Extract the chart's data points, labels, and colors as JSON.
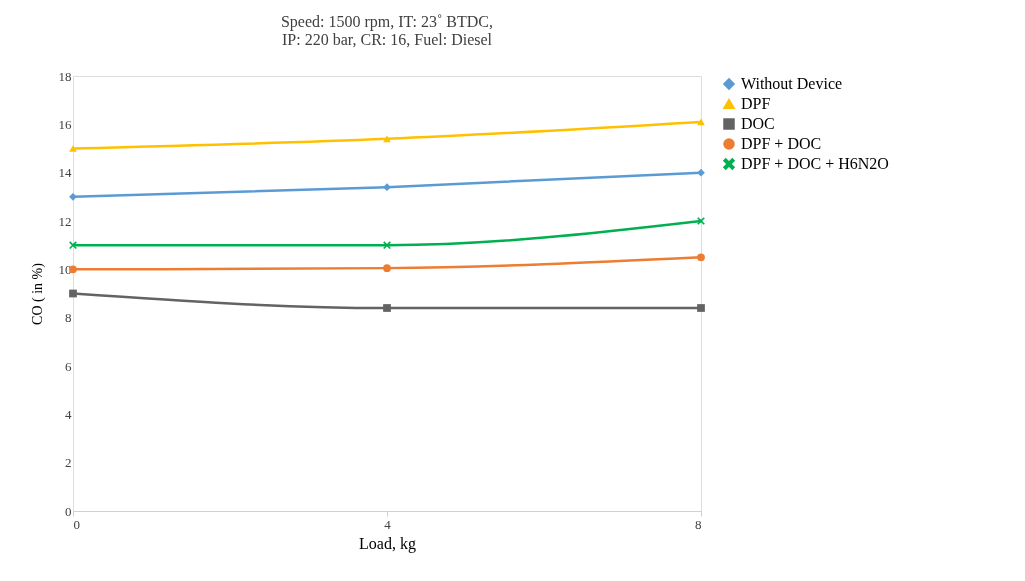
{
  "chart_data": {
    "type": "line",
    "title": "Speed:  1500 rpm, IT: 23˚ BTDC, IP: 220 bar, CR: 16, Fuel: Diesel",
    "xlabel": "Load, kg",
    "ylabel": "CO ( in %)",
    "x": [
      0,
      4,
      8
    ],
    "xlim": [
      0,
      8
    ],
    "xticks": [
      0,
      4,
      8
    ],
    "ylim": [
      0,
      18
    ],
    "yticks": [
      0,
      2,
      4,
      6,
      8,
      10,
      12,
      14,
      16,
      18
    ],
    "grid": false,
    "legend": "right",
    "line_style": "solid",
    "series": [
      {
        "name": "Without Device",
        "color": "#5b9bd5",
        "marker": "diamond",
        "values": [
          13,
          13.4,
          14
        ]
      },
      {
        "name": "DPF",
        "color": "#ffc000",
        "marker": "triangle",
        "values": [
          15,
          15.4,
          16.1
        ]
      },
      {
        "name": "DOC",
        "color": "#636363",
        "marker": "square",
        "values": [
          9,
          8.4,
          8.4
        ]
      },
      {
        "name": "DPF + DOC",
        "color": "#ed7d31",
        "marker": "circle",
        "values": [
          10,
          10.05,
          10.5
        ]
      },
      {
        "name": "DPF + DOC + H6N2O",
        "color": "#00b050",
        "marker": "cross",
        "values": [
          11,
          11,
          12
        ]
      }
    ]
  }
}
